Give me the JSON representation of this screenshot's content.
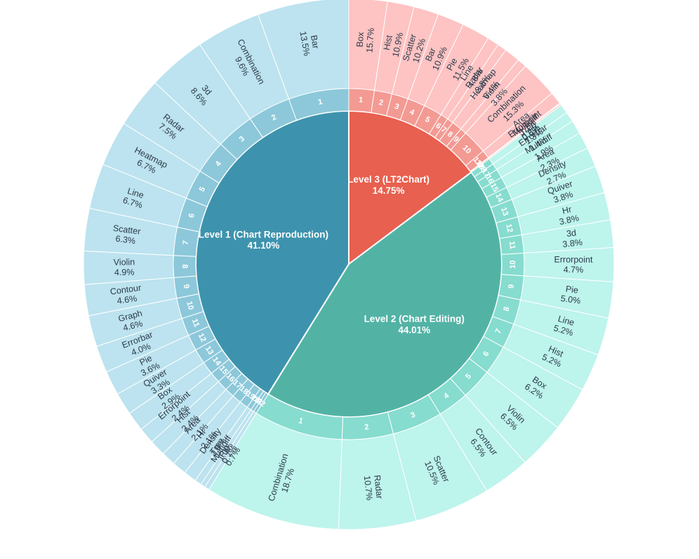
{
  "chart_data": {
    "type": "sunburst",
    "groups": [
      {
        "name": "Level 3 (LT2Chart)",
        "percent": "14.75%",
        "value": 14.75,
        "color": "#e8604f",
        "ring_color": "#f39a93",
        "outer_color": "#fec3c3",
        "items": [
          {
            "index": "1",
            "label": "Box",
            "percent": "15.7%",
            "value": 15.7
          },
          {
            "index": "2",
            "label": "Hist",
            "percent": "10.9%",
            "value": 10.9
          },
          {
            "index": "3",
            "label": "Scatter",
            "percent": "10.2%",
            "value": 10.2
          },
          {
            "index": "4",
            "label": "Bar",
            "percent": "10.9%",
            "value": 10.9
          },
          {
            "index": "5",
            "label": "Pie",
            "percent": "11.5%",
            "value": 11.5
          },
          {
            "index": "6",
            "label": "Line",
            "percent": "4.8%",
            "value": 4.8
          },
          {
            "index": "7",
            "label": "Radar",
            "percent": "3.8%",
            "value": 3.8
          },
          {
            "index": "8",
            "label": "Heatmap",
            "percent": "6.4%",
            "value": 6.4
          },
          {
            "index": "9",
            "label": "Violin",
            "percent": "3.8%",
            "value": 3.8
          },
          {
            "index": "10",
            "label": "Combination",
            "percent": "15.3%",
            "value": 15.3
          },
          {
            "index": "11",
            "label": "Area",
            "percent": "5.1%",
            "value": 5.1
          },
          {
            "index": "12",
            "label": "Errorpoint",
            "percent": "0.3%",
            "value": 0.3
          },
          {
            "index": "13",
            "label": "Multidiff",
            "percent": "0.6%",
            "value": 0.6
          }
        ]
      },
      {
        "name": "Level 2 (Chart Editing)",
        "percent": "44.01%",
        "value": 44.01,
        "color": "#52b3a5",
        "ring_color": "#86dccf",
        "outer_color": "#bdf4ec",
        "items": [
          {
            "index": "18",
            "label": "Tree",
            "percent": "1.3%",
            "value": 1.3
          },
          {
            "index": "17",
            "label": "Errorbar",
            "percent": "1.4%",
            "value": 1.4
          },
          {
            "index": "16",
            "label": "Multidiff",
            "percent": "1.9%",
            "value": 1.9
          },
          {
            "index": "15",
            "label": "Area",
            "percent": "2.3%",
            "value": 2.3
          },
          {
            "index": "14",
            "label": "Density",
            "percent": "2.7%",
            "value": 2.7
          },
          {
            "index": "13",
            "label": "Quiver",
            "percent": "3.8%",
            "value": 3.8
          },
          {
            "index": "12",
            "label": "Hr",
            "percent": "3.8%",
            "value": 3.8
          },
          {
            "index": "11",
            "label": "3d",
            "percent": "3.8%",
            "value": 3.8
          },
          {
            "index": "10",
            "label": "Errorpoint",
            "percent": "4.7%",
            "value": 4.7
          },
          {
            "index": "9",
            "label": "Pie",
            "percent": "5.0%",
            "value": 5.0
          },
          {
            "index": "8",
            "label": "Line",
            "percent": "5.2%",
            "value": 5.2
          },
          {
            "index": "7",
            "label": "Hist",
            "percent": "5.2%",
            "value": 5.2
          },
          {
            "index": "6",
            "label": "Box",
            "percent": "6.2%",
            "value": 6.2
          },
          {
            "index": "5",
            "label": "Violin",
            "percent": "6.5%",
            "value": 6.5
          },
          {
            "index": "4",
            "label": "Contour",
            "percent": "6.5%",
            "value": 6.5
          },
          {
            "index": "3",
            "label": "Scatter",
            "percent": "10.5%",
            "value": 10.5
          },
          {
            "index": "2",
            "label": "Radar",
            "percent": "10.7%",
            "value": 10.7
          },
          {
            "index": "1",
            "label": "Combination",
            "percent": "18.7%",
            "value": 18.7
          }
        ]
      },
      {
        "name": "Level 1 (Chart Reproduction)",
        "percent": "41.10%",
        "value": 41.1,
        "color": "#3d93ad",
        "ring_color": "#8cc8da",
        "outer_color": "#bce3ef",
        "items": [
          {
            "index": "22",
            "label": "Pip",
            "percent": "0.7%",
            "value": 0.7
          },
          {
            "index": "21",
            "label": "Multidiff",
            "percent": "0.7%",
            "value": 0.7
          },
          {
            "index": "20",
            "label": "Tree",
            "percent": "1.0%",
            "value": 1.0
          },
          {
            "index": "19",
            "label": "Density",
            "percent": "1.9%",
            "value": 1.9
          },
          {
            "index": "18",
            "label": "Hr",
            "percent": "2.1%",
            "value": 2.1
          },
          {
            "index": "17",
            "label": "Area",
            "percent": "2.1%",
            "value": 2.1
          },
          {
            "index": "16",
            "label": "Hist",
            "percent": "2.4%",
            "value": 2.4
          },
          {
            "index": "15",
            "label": "Errorpoint",
            "percent": "2.4%",
            "value": 2.4
          },
          {
            "index": "14",
            "label": "Box",
            "percent": "2.9%",
            "value": 2.9
          },
          {
            "index": "13",
            "label": "Quiver",
            "percent": "3.3%",
            "value": 3.3
          },
          {
            "index": "12",
            "label": "Pie",
            "percent": "3.6%",
            "value": 3.6
          },
          {
            "index": "11",
            "label": "Errorbar",
            "percent": "4.0%",
            "value": 4.0
          },
          {
            "index": "10",
            "label": "Graph",
            "percent": "4.6%",
            "value": 4.6
          },
          {
            "index": "9",
            "label": "Contour",
            "percent": "4.6%",
            "value": 4.6
          },
          {
            "index": "8",
            "label": "Violin",
            "percent": "4.9%",
            "value": 4.9
          },
          {
            "index": "7",
            "label": "Scatter",
            "percent": "6.3%",
            "value": 6.3
          },
          {
            "index": "6",
            "label": "Line",
            "percent": "6.7%",
            "value": 6.7
          },
          {
            "index": "5",
            "label": "Heatmap",
            "percent": "6.7%",
            "value": 6.7
          },
          {
            "index": "4",
            "label": "Radar",
            "percent": "7.5%",
            "value": 7.5
          },
          {
            "index": "3",
            "label": "3d",
            "percent": "8.6%",
            "value": 8.6
          },
          {
            "index": "2",
            "label": "Combination",
            "percent": "9.6%",
            "value": 9.6
          },
          {
            "index": "1",
            "label": "Bar",
            "percent": "13.5%",
            "value": 13.5
          }
        ]
      }
    ]
  }
}
